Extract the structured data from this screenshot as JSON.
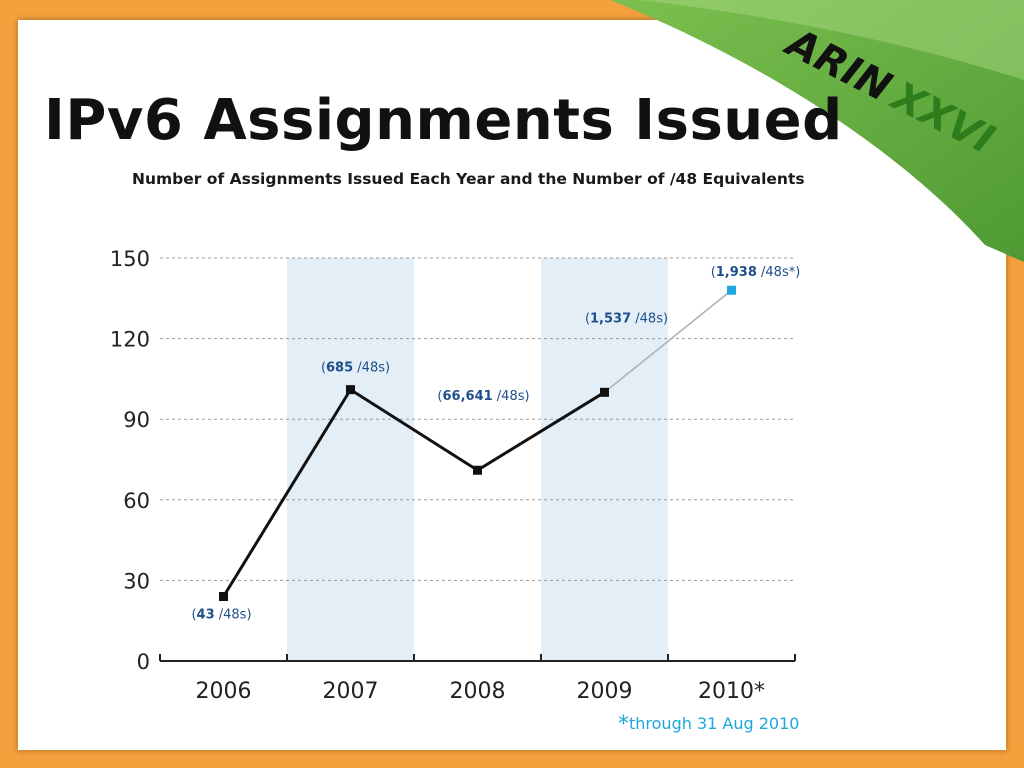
{
  "slide": {
    "title": "IPv6 Assignments Issued",
    "logo_main": "ARIN",
    "logo_sub": "XXVI",
    "colors": {
      "frame": "#f5a03c",
      "banner": "#6ab04c",
      "band": "#e4eef7",
      "line": "#111111",
      "projection": "#aab0b5",
      "projection_marker": "#1ea7dd"
    }
  },
  "chart_data": {
    "type": "line",
    "title": "Number of Assignments Issued Each Year and the Number of /48 Equivalents",
    "categories": [
      "2006",
      "2007",
      "2008",
      "2009",
      "2010*"
    ],
    "values": [
      24,
      101,
      71,
      100,
      138
    ],
    "ylim": [
      0,
      150
    ],
    "yticks": [
      "0",
      "30",
      "60",
      "90",
      "120",
      "150"
    ],
    "grid": true,
    "shaded_categories": [
      1,
      3
    ],
    "projected_last": true,
    "data_labels": [
      {
        "open": "(",
        "bold": "43",
        "rest": " /48s)"
      },
      {
        "open": "(",
        "bold": "685",
        "rest": " /48s)"
      },
      {
        "open": "(",
        "bold": "66,641",
        "rest": " /48s)"
      },
      {
        "open": "(",
        "bold": "1,537",
        "rest": " /48s)"
      },
      {
        "open": "(",
        "bold": "1,938",
        "rest": " /48s*)"
      }
    ],
    "footnote_star": "*",
    "footnote": "through 31 Aug 2010"
  }
}
